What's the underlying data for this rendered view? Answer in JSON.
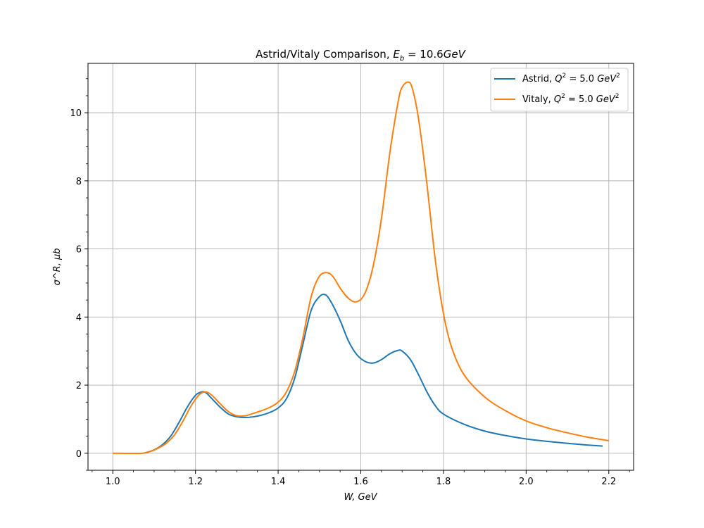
{
  "chart_data": {
    "type": "line",
    "title": "Astrid/Vitaly Comparison, E_b = 10.6GeV",
    "title_parts": {
      "main": "Astrid/Vitaly Comparison, ",
      "E": "E",
      "sub": "b",
      "value": " = 10.6",
      "unit": "GeV"
    },
    "xlabel": "W, GeV",
    "ylabel": "σ^R, μb",
    "xlim": [
      0.94,
      2.26
    ],
    "ylim": [
      -0.5,
      11.45
    ],
    "xticks": [
      1.0,
      1.2,
      1.4,
      1.6,
      1.8,
      2.0,
      2.2
    ],
    "xtick_labels": [
      "1.0",
      "1.2",
      "1.4",
      "1.6",
      "1.8",
      "2.0",
      "2.2"
    ],
    "yticks": [
      0,
      2,
      4,
      6,
      8,
      10
    ],
    "ytick_labels": [
      "0",
      "2",
      "4",
      "6",
      "8",
      "10"
    ],
    "grid": true,
    "legend_position": "top-right",
    "series": [
      {
        "name": "Astrid, Q^2 = 5.0 GeV^2",
        "legend_parts": {
          "prefix": "Astrid, ",
          "Q": "Q",
          "sup": "2",
          "mid": " = 5.0 ",
          "unit": "GeV",
          "unit_sup": "2"
        },
        "color": "#1f77b4",
        "x": [
          1.075,
          1.1,
          1.12,
          1.14,
          1.16,
          1.18,
          1.2,
          1.215,
          1.225,
          1.24,
          1.26,
          1.28,
          1.3,
          1.32,
          1.34,
          1.36,
          1.38,
          1.4,
          1.42,
          1.44,
          1.46,
          1.48,
          1.5,
          1.515,
          1.53,
          1.55,
          1.57,
          1.59,
          1.61,
          1.63,
          1.65,
          1.67,
          1.69,
          1.7,
          1.72,
          1.74,
          1.76,
          1.78,
          1.8,
          1.85,
          1.9,
          1.95,
          2.0,
          2.05,
          2.1,
          2.15,
          2.185
        ],
        "y": [
          0.0,
          0.1,
          0.25,
          0.5,
          0.9,
          1.35,
          1.7,
          1.8,
          1.78,
          1.6,
          1.35,
          1.15,
          1.07,
          1.05,
          1.07,
          1.12,
          1.2,
          1.33,
          1.6,
          2.2,
          3.2,
          4.2,
          4.6,
          4.65,
          4.4,
          3.9,
          3.3,
          2.9,
          2.7,
          2.65,
          2.75,
          2.92,
          3.02,
          3.0,
          2.75,
          2.3,
          1.8,
          1.4,
          1.15,
          0.85,
          0.65,
          0.52,
          0.42,
          0.35,
          0.29,
          0.24,
          0.21
        ]
      },
      {
        "name": "Vitaly, Q^2 = 5.0 GeV^2",
        "legend_parts": {
          "prefix": "Vitaly, ",
          "Q": "Q",
          "sup": "2",
          "mid": " = 5.0 ",
          "unit": "GeV",
          "unit_sup": "2"
        },
        "color": "#ff7f0e",
        "x": [
          1.0,
          1.07,
          1.09,
          1.11,
          1.13,
          1.15,
          1.17,
          1.19,
          1.21,
          1.225,
          1.24,
          1.26,
          1.28,
          1.3,
          1.32,
          1.34,
          1.36,
          1.38,
          1.4,
          1.42,
          1.44,
          1.46,
          1.48,
          1.5,
          1.52,
          1.535,
          1.55,
          1.57,
          1.59,
          1.61,
          1.63,
          1.65,
          1.67,
          1.69,
          1.7,
          1.715,
          1.725,
          1.74,
          1.76,
          1.78,
          1.8,
          1.82,
          1.85,
          1.9,
          1.95,
          2.0,
          2.05,
          2.1,
          2.15,
          2.2
        ],
        "y": [
          0.0,
          0.0,
          0.05,
          0.15,
          0.3,
          0.55,
          0.95,
          1.4,
          1.73,
          1.8,
          1.7,
          1.45,
          1.22,
          1.1,
          1.1,
          1.17,
          1.25,
          1.35,
          1.5,
          1.8,
          2.4,
          3.4,
          4.6,
          5.2,
          5.3,
          5.15,
          4.85,
          4.55,
          4.45,
          4.7,
          5.5,
          6.9,
          8.8,
          10.3,
          10.75,
          10.9,
          10.7,
          9.8,
          7.9,
          5.7,
          4.1,
          3.1,
          2.3,
          1.65,
          1.25,
          0.95,
          0.75,
          0.6,
          0.47,
          0.37
        ]
      }
    ]
  }
}
